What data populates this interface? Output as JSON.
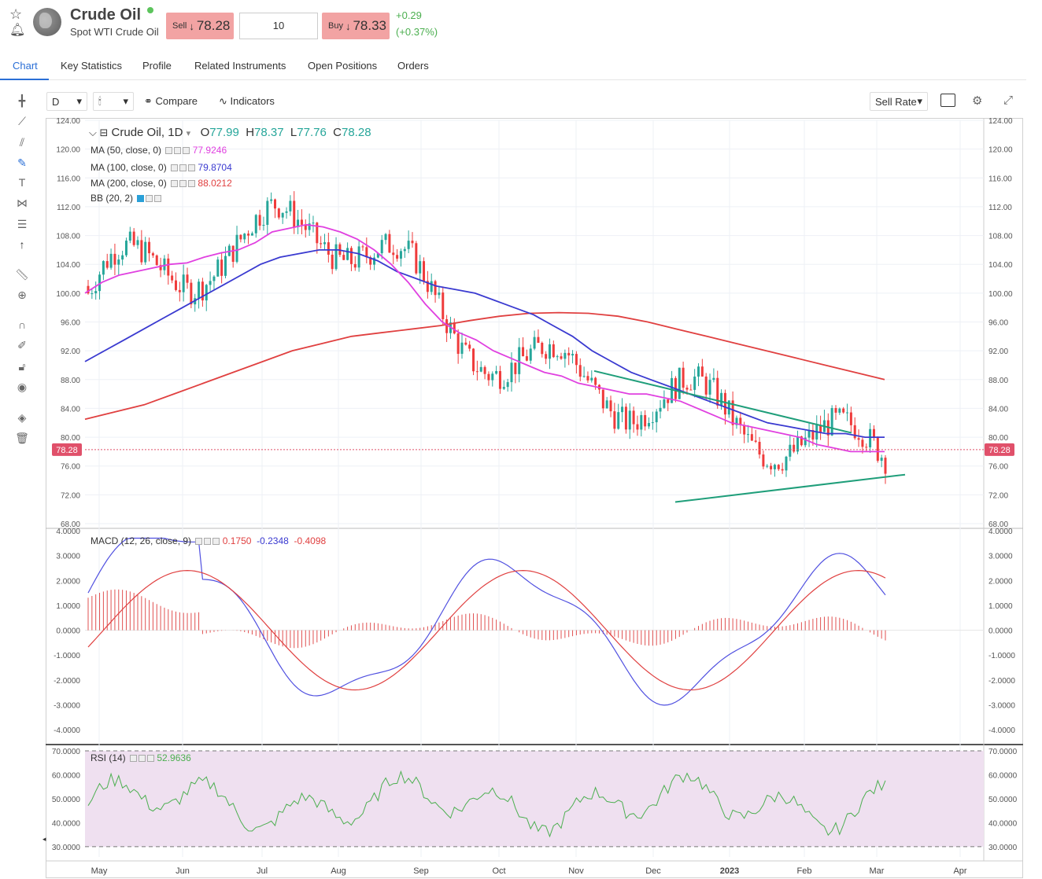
{
  "header": {
    "title": "Crude Oil",
    "subtitle": "Spot WTI Crude Oil",
    "sell_label": "Sell",
    "sell_price": "78.28",
    "quantity": "10",
    "buy_label": "Buy",
    "buy_price": "78.33",
    "change": "+0.29",
    "change_pct": "(+0.37%)",
    "colors": {
      "sell_bg": "#f2a3a3",
      "buy_bg": "#f2a3a3",
      "positive": "#4caf50"
    }
  },
  "tabs": [
    {
      "label": "Chart",
      "active": true
    },
    {
      "label": "Key Statistics"
    },
    {
      "label": "Profile"
    },
    {
      "label": "Related Instruments"
    },
    {
      "label": "Open Positions"
    },
    {
      "label": "Orders"
    }
  ],
  "toolbar": {
    "interval": "D",
    "compare_label": "Compare",
    "indicators_label": "Indicators",
    "rate_select": "Sell Rate"
  },
  "legend": {
    "symbol": "Crude Oil, 1D",
    "open_label": "O",
    "open": "77.99",
    "high_label": "H",
    "high": "78.37",
    "low_label": "L",
    "low": "77.76",
    "close_label": "C",
    "close": "78.28",
    "ma50": {
      "label": "MA (50, close, 0)",
      "value": "77.9246",
      "color": "#e040e0"
    },
    "ma100": {
      "label": "MA (100, close, 0)",
      "value": "79.8704",
      "color": "#3a3ad0"
    },
    "ma200": {
      "label": "MA (200, close, 0)",
      "value": "88.0212",
      "color": "#e04040"
    },
    "bb": {
      "label": "BB (20, 2)"
    },
    "macd": {
      "label": "MACD (12, 26, close, 9)",
      "v1": "0.1750",
      "v2": "-0.2348",
      "v3": "-0.4098"
    },
    "rsi": {
      "label": "RSI (14)",
      "value": "52.9636"
    }
  },
  "price_axis": {
    "ticks": [
      "124.00",
      "120.00",
      "116.00",
      "112.00",
      "108.00",
      "104.00",
      "100.00",
      "96.00",
      "92.00",
      "88.00",
      "84.00",
      "80.00",
      "76.00",
      "72.00",
      "68.00"
    ],
    "current": "78.28"
  },
  "macd_axis": {
    "ticks": [
      "4.0000",
      "3.0000",
      "2.0000",
      "1.0000",
      "0.0000",
      "-1.0000",
      "-2.0000",
      "-3.0000",
      "-4.0000"
    ]
  },
  "rsi_axis": {
    "ticks": [
      "70.0000",
      "60.0000",
      "50.0000",
      "40.0000",
      "30.0000"
    ]
  },
  "time_axis": {
    "ticks": [
      "May",
      "Jun",
      "Jul",
      "Aug",
      "Sep",
      "Oct",
      "Nov",
      "Dec",
      "2023",
      "Feb",
      "Mar",
      "Apr"
    ]
  },
  "chart_data": {
    "type": "line",
    "panes": [
      "price",
      "macd",
      "rsi"
    ],
    "ylim_price": [
      68,
      124
    ],
    "ylim_macd": [
      -4.5,
      4
    ],
    "ylim_rsi": [
      28,
      70
    ],
    "ma50_series": [
      100,
      101.5,
      102.5,
      103,
      103.5,
      104,
      104.2,
      105,
      105.6,
      106,
      107,
      108.5,
      109,
      109.5,
      109.2,
      108.5,
      107.5,
      106,
      104,
      101.5,
      98.5,
      96,
      94.5,
      93.5,
      92,
      91,
      90,
      89,
      88.5,
      87.5,
      87,
      86.5,
      86,
      86,
      85.5,
      85,
      84,
      83,
      82,
      81.5,
      81,
      80.5,
      80,
      79,
      78.5,
      78,
      78,
      78
    ],
    "ma100_series": [
      90.5,
      92,
      93.5,
      95,
      96.5,
      98,
      99.5,
      101,
      102.5,
      104,
      105,
      105.5,
      106,
      106,
      105.5,
      104.5,
      103,
      102,
      101,
      100.5,
      100,
      99,
      98,
      97,
      95.5,
      94,
      92,
      90.5,
      89,
      88,
      87,
      86,
      85,
      84,
      83,
      82,
      81.5,
      81,
      80.5,
      80.5,
      80,
      80
    ],
    "ma200_series": [
      82.5,
      83.5,
      84.5,
      86,
      87.5,
      89,
      90.5,
      92,
      93,
      94,
      94.5,
      95,
      95.5,
      96.2,
      96.8,
      97.2,
      97.3,
      97.2,
      96.8,
      96,
      95,
      94,
      93,
      92,
      91,
      90,
      89,
      88
    ],
    "trendlines": [
      {
        "name": "upper",
        "from": 89.2,
        "to": 80.6
      },
      {
        "name": "lower",
        "from": 71.0,
        "to": 74.8
      }
    ]
  }
}
